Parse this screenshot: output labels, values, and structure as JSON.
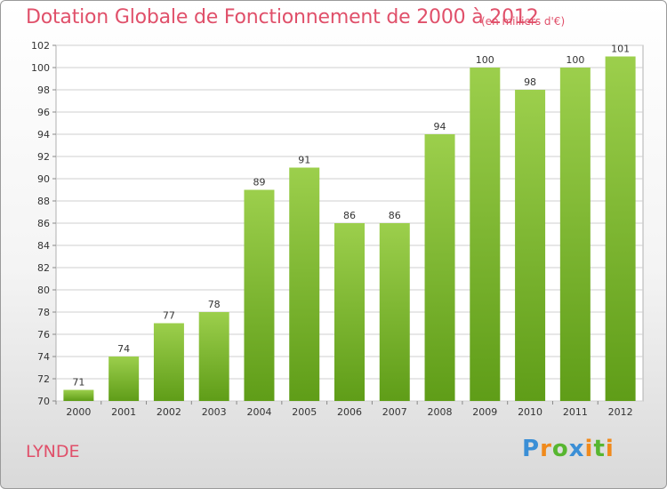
{
  "header": {
    "title": "Dotation Globale de Fonctionnement de 2000 à 2012",
    "unit": "(en milliers d'€)"
  },
  "footer": {
    "commune": "LYNDE",
    "logo": "Proxiti"
  },
  "colors": {
    "bar_light": "#9ccf4c",
    "bar_dark": "#5f9d18",
    "text_accent": "#e0506a"
  },
  "chart_data": {
    "type": "bar",
    "title": "Dotation Globale de Fonctionnement de 2000 à 2012",
    "subtitle": "(en milliers d'€)",
    "xlabel": "",
    "ylabel": "",
    "categories": [
      "2000",
      "2001",
      "2002",
      "2003",
      "2004",
      "2005",
      "2006",
      "2007",
      "2008",
      "2009",
      "2010",
      "2011",
      "2012"
    ],
    "values": [
      71,
      74,
      77,
      78,
      89,
      91,
      86,
      86,
      94,
      100,
      98,
      100,
      101
    ],
    "ylim": [
      70,
      102
    ],
    "yticks": [
      70,
      72,
      74,
      76,
      78,
      80,
      82,
      84,
      86,
      88,
      90,
      92,
      94,
      96,
      98,
      100,
      102
    ],
    "grid": true,
    "legend": "none"
  }
}
